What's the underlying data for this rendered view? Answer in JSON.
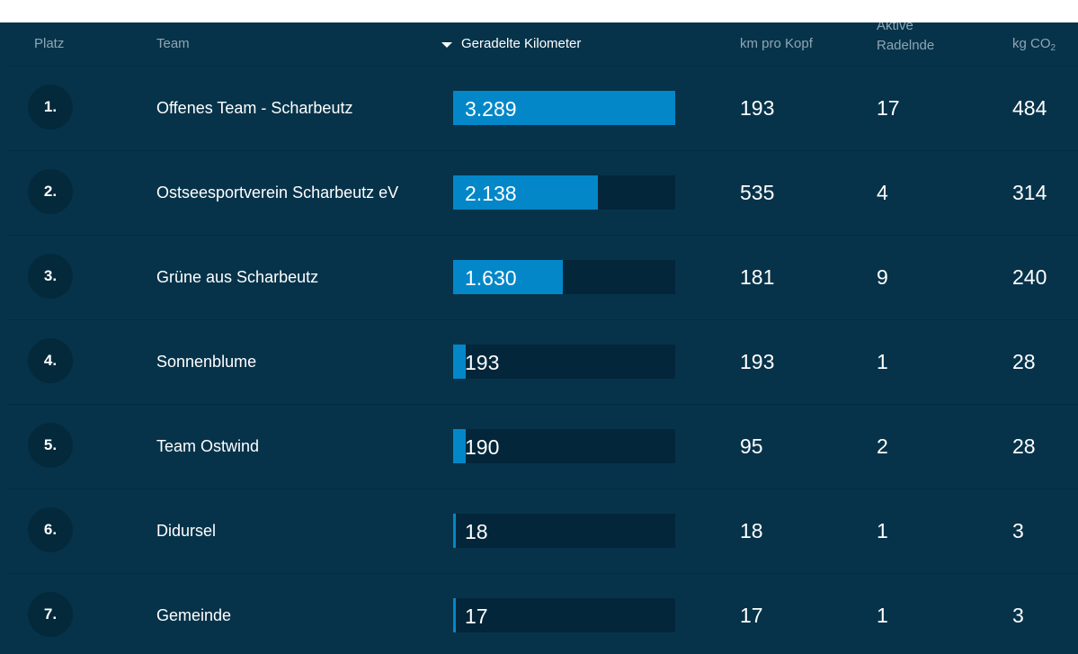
{
  "header": {
    "platz": "Platz",
    "team": "Team",
    "km": "Geradelte Kilometer",
    "km_pro_kopf": "km pro Kopf",
    "aktive": "Aktive Radelnde",
    "co2_prefix": "kg CO",
    "co2_sub": "2"
  },
  "max_km": 3289,
  "rows": [
    {
      "rank": "1.",
      "team": "Offenes Team - Scharbeutz",
      "km": "3.289",
      "km_num": 3289,
      "kpk": "193",
      "aktive": "17",
      "co2": "484"
    },
    {
      "rank": "2.",
      "team": "Ostseesportverein Scharbeutz eV",
      "km": "2.138",
      "km_num": 2138,
      "kpk": "535",
      "aktive": "4",
      "co2": "314"
    },
    {
      "rank": "3.",
      "team": "Grüne aus Scharbeutz",
      "km": "1.630",
      "km_num": 1630,
      "kpk": "181",
      "aktive": "9",
      "co2": "240"
    },
    {
      "rank": "4.",
      "team": "Sonnenblume",
      "km": "193",
      "km_num": 193,
      "kpk": "193",
      "aktive": "1",
      "co2": "28"
    },
    {
      "rank": "5.",
      "team": "Team Ostwind",
      "km": "190",
      "km_num": 190,
      "kpk": "95",
      "aktive": "2",
      "co2": "28"
    },
    {
      "rank": "6.",
      "team": "Didursel",
      "km": "18",
      "km_num": 18,
      "kpk": "18",
      "aktive": "1",
      "co2": "3"
    },
    {
      "rank": "7.",
      "team": "Gemeinde",
      "km": "17",
      "km_num": 17,
      "kpk": "17",
      "aktive": "1",
      "co2": "3"
    }
  ]
}
